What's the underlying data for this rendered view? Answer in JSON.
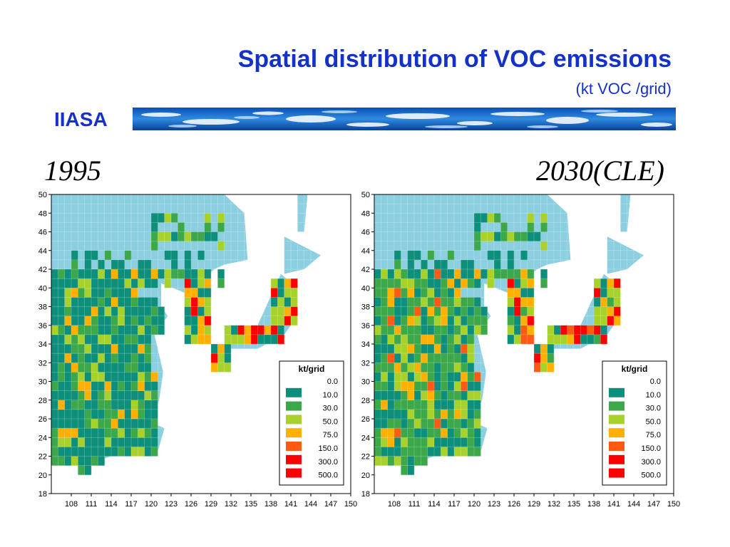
{
  "header": {
    "title": "Spatial distribution of VOC emissions",
    "subtitle": "(kt VOC /grid)",
    "org": "IIASA"
  },
  "legend": {
    "title": "kt/grid",
    "classes": [
      {
        "label": "0.0",
        "color": "#8ccfe0"
      },
      {
        "label": "10.0",
        "color": "#0d8f7c"
      },
      {
        "label": "30.0",
        "color": "#3da84a"
      },
      {
        "label": "50.0",
        "color": "#a8d12c"
      },
      {
        "label": "75.0",
        "color": "#ffb000"
      },
      {
        "label": "150.0",
        "color": "#ff5a14"
      },
      {
        "label": "300.0",
        "color": "#ff0000"
      },
      {
        "label": "500.0",
        "color": "#ff0000"
      }
    ]
  },
  "axes": {
    "lon_labels": [
      "108",
      "111",
      "114",
      "117",
      "120",
      "123",
      "126",
      "129",
      "132",
      "135",
      "138",
      "141",
      "144",
      "147",
      "150"
    ],
    "lat_labels": [
      "50",
      "48",
      "46",
      "44",
      "42",
      "40",
      "38",
      "36",
      "34",
      "32",
      "30",
      "28",
      "26",
      "24",
      "22",
      "20",
      "18"
    ],
    "lon_range": [
      105,
      150
    ],
    "lat_range": [
      18,
      50
    ]
  },
  "maps": [
    {
      "period": "1995",
      "scenario_shift": 0
    },
    {
      "period": "2030(CLE)",
      "scenario_shift": 1
    }
  ]
}
